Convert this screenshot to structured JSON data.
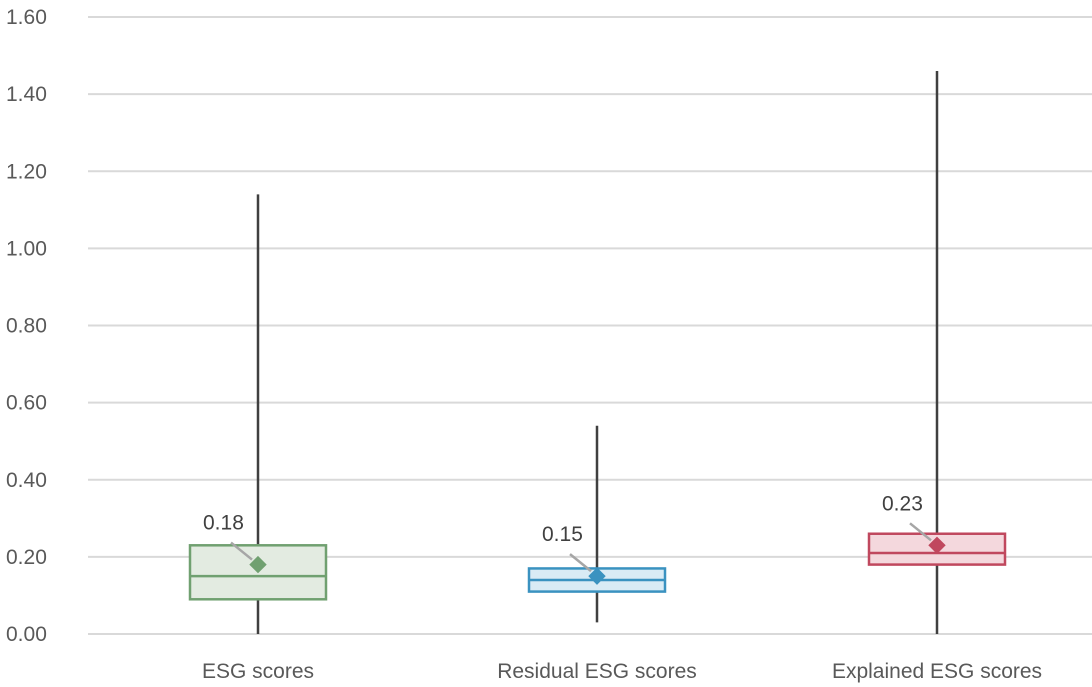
{
  "chart_data": {
    "type": "box",
    "title": "",
    "xlabel": "",
    "ylabel": "",
    "ylim": [
      0,
      1.6
    ],
    "yticks": [
      0.0,
      0.2,
      0.4,
      0.6,
      0.8,
      1.0,
      1.2,
      1.4,
      1.6
    ],
    "ytick_labels": [
      "0.00",
      "0.20",
      "0.40",
      "0.60",
      "0.80",
      "1.00",
      "1.20",
      "1.40",
      "1.60"
    ],
    "grid": true,
    "legend": "none",
    "categories": [
      "ESG scores",
      "Residual ESG scores",
      "Explained ESG scores"
    ],
    "series": [
      {
        "category": "ESG scores",
        "min": 0.0,
        "q1": 0.09,
        "median": 0.15,
        "q3": 0.23,
        "max": 1.14,
        "mean": 0.18,
        "mean_label": "0.18",
        "color": "#70a070",
        "fill": "#e3ebe1"
      },
      {
        "category": "Residual ESG scores",
        "min": 0.03,
        "q1": 0.11,
        "median": 0.14,
        "q3": 0.17,
        "max": 0.54,
        "mean": 0.15,
        "mean_label": "0.15",
        "color": "#3a92c0",
        "fill": "#d9ebf5"
      },
      {
        "category": "Explained ESG scores",
        "min": 0.0,
        "q1": 0.18,
        "median": 0.21,
        "q3": 0.26,
        "max": 1.46,
        "mean": 0.23,
        "mean_label": "0.23",
        "color": "#c0485e",
        "fill": "#f4d8dd"
      }
    ]
  }
}
